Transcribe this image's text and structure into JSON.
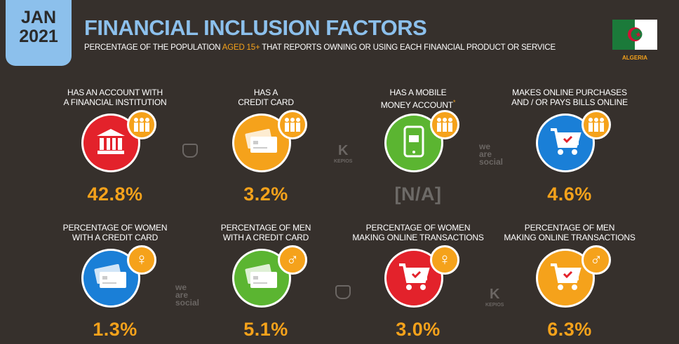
{
  "header": {
    "date_month": "JAN",
    "date_year": "2021",
    "title": "FINANCIAL INCLUSION FACTORS",
    "subtitle_pre": "PERCENTAGE OF THE POPULATION ",
    "subtitle_hl": "AGED 15+",
    "subtitle_post": " THAT REPORTS OWNING OR USING EACH FINANCIAL PRODUCT OR SERVICE",
    "country": "ALGERIA"
  },
  "watermarks": {
    "wearesocial": "we are social",
    "kepios": "KEPIOS"
  },
  "items": [
    {
      "label1": "HAS AN ACCOUNT WITH",
      "label2": "A FINANCIAL INSTITUTION",
      "value": "42.8%",
      "color": "#e3222b",
      "icon": "bank-icon",
      "badge": "people-icon"
    },
    {
      "label1": "HAS A",
      "label2": "CREDIT CARD",
      "value": "3.2%",
      "color": "#f5a21b",
      "icon": "credit-card-icon",
      "badge": "people-icon"
    },
    {
      "label1": "HAS A MOBILE",
      "label2": "MONEY ACCOUNT",
      "note": "*",
      "value": "[N/A]",
      "color": "#5bb531",
      "icon": "mobile-money-icon",
      "badge": "people-icon"
    },
    {
      "label1": "MAKES ONLINE PURCHASES",
      "label2": "AND / OR PAYS BILLS ONLINE",
      "value": "4.6%",
      "color": "#1a7fd7",
      "icon": "shopping-cart-icon",
      "badge": "people-icon"
    },
    {
      "label1": "PERCENTAGE OF WOMEN",
      "label2": "WITH A CREDIT CARD",
      "value": "1.3%",
      "color": "#1a7fd7",
      "icon": "credit-card-icon",
      "badge": "female-icon"
    },
    {
      "label1": "PERCENTAGE OF MEN",
      "label2": "WITH A CREDIT CARD",
      "value": "5.1%",
      "color": "#5bb531",
      "icon": "credit-card-icon",
      "badge": "male-icon"
    },
    {
      "label1": "PERCENTAGE OF WOMEN",
      "label2": "MAKING ONLINE TRANSACTIONS",
      "value": "3.0%",
      "color": "#e3222b",
      "icon": "shopping-cart-icon",
      "badge": "female-icon"
    },
    {
      "label1": "PERCENTAGE OF MEN",
      "label2": "MAKING ONLINE TRANSACTIONS",
      "value": "6.3%",
      "color": "#f5a21b",
      "icon": "shopping-cart-icon",
      "badge": "male-icon"
    }
  ]
}
